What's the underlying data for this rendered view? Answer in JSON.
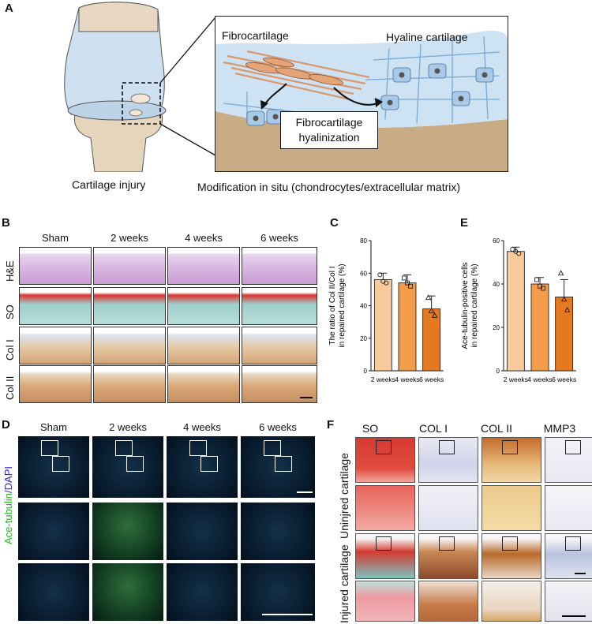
{
  "panel_letters": {
    "a": "A",
    "b": "B",
    "c": "C",
    "d": "D",
    "e": "E",
    "f": "F"
  },
  "panelA": {
    "left_caption": "Cartilage injury",
    "bottom_caption": "Modification in situ  (chondrocytes/extracellular matrix)",
    "fibro_label": "Fibrocartilage",
    "hyaline_label": "Hyaline cartilage",
    "box_line1": "Fibrocartilage",
    "box_line2": "hyalinization"
  },
  "panelB": {
    "columns": [
      "Sham",
      "2 weeks",
      "4 weeks",
      "6 weeks"
    ],
    "rows": [
      "H&E",
      "SO",
      "Col I",
      "Col II"
    ]
  },
  "panelD": {
    "columns": [
      "Sham",
      "2 weeks",
      "4 weeks",
      "6 weeks"
    ],
    "side_label_green": "Ace-tubulin",
    "side_label_blue": "/DAPI"
  },
  "panelF": {
    "columns": [
      "SO",
      "COL I",
      "COL II",
      "MMP3"
    ],
    "rows": [
      "Uninjred cartilage",
      "Injured cartilage"
    ]
  },
  "chart_data": [
    {
      "type": "bar",
      "categories": [
        "2 weeks",
        "4 weeks",
        "6 weeks"
      ],
      "values": [
        56,
        54,
        38
      ],
      "errors": [
        4,
        5,
        8
      ],
      "points": [
        [
          59,
          55,
          54
        ],
        [
          57,
          54,
          52
        ],
        [
          45,
          37,
          34
        ]
      ],
      "markers": [
        "circle",
        "square",
        "triangle"
      ],
      "ylabel_line1": "The ratio of Col II/Col I",
      "ylabel_line2": "in repaired cartilage (%)",
      "ylim": [
        0,
        80
      ],
      "yticks": [
        0,
        20,
        40,
        60,
        80
      ],
      "colors": [
        "#f8c99a",
        "#f39c4a",
        "#e5791f"
      ]
    },
    {
      "type": "bar",
      "categories": [
        "2 weeks",
        "4 weeks",
        "6 weeks"
      ],
      "values": [
        55,
        40,
        34
      ],
      "errors": [
        2,
        3,
        8
      ],
      "points": [
        [
          56,
          55,
          54
        ],
        [
          42,
          39,
          38
        ],
        [
          45,
          33,
          28
        ]
      ],
      "markers": [
        "circle",
        "square",
        "triangle"
      ],
      "ylabel_line1": "Ace-tubulin-positive cells",
      "ylabel_line2": "in repaired cartilage (%)",
      "ylim": [
        0,
        60
      ],
      "yticks": [
        0,
        20,
        40,
        60
      ],
      "colors": [
        "#f8c99a",
        "#f39c4a",
        "#e5791f"
      ]
    }
  ]
}
